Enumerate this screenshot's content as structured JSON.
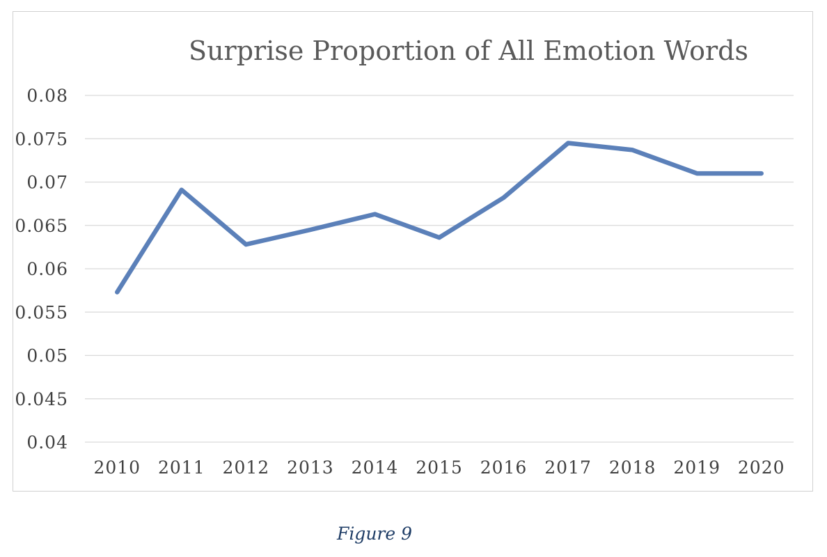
{
  "chart_data": {
    "type": "line",
    "title": "Surprise Proportion of All Emotion Words",
    "xlabel": "",
    "ylabel": "",
    "categories": [
      "2010",
      "2011",
      "2012",
      "2013",
      "2014",
      "2015",
      "2016",
      "2017",
      "2018",
      "2019",
      "2020"
    ],
    "series": [
      {
        "values": [
          0.0573,
          0.0691,
          0.0628,
          0.0645,
          0.0663,
          0.0636,
          0.0682,
          0.0745,
          0.0737,
          0.071,
          0.071
        ]
      }
    ],
    "y_ticks": [
      "0.04",
      "0.045",
      "0.05",
      "0.055",
      "0.06",
      "0.065",
      "0.07",
      "0.075",
      "0.08"
    ],
    "ylim": [
      0.04,
      0.08
    ],
    "grid": "horizontal",
    "legend": "none",
    "colors": {
      "series": "#5b80b9",
      "grid": "#d9d9d9",
      "title": "#595959"
    }
  },
  "caption": "Figure 9"
}
